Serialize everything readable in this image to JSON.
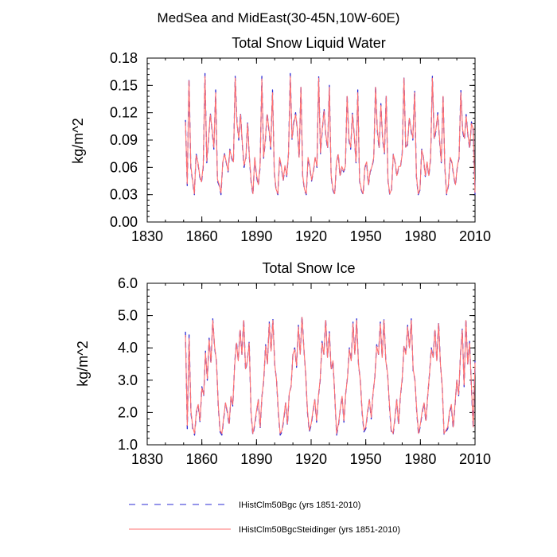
{
  "suptitle": "MedSea and MidEast(30-45N,10W-60E)",
  "legend": {
    "entries": [
      {
        "label": "IHistClm50Bgc (yrs 1851-2010)",
        "color": "#2b2bd6",
        "dash": "dashed"
      },
      {
        "label": "IHistClm50BgcSteidinger (yrs 1851-2010)",
        "color": "#ff7070",
        "dash": "solid"
      }
    ]
  },
  "chart_data": [
    {
      "type": "line",
      "title": "Total Snow Liquid Water",
      "xlabel": "",
      "ylabel": "kg/m^2",
      "xlim": [
        1830,
        2010
      ],
      "ylim": [
        0.0,
        0.18
      ],
      "xticks": [
        "1830",
        "1860",
        "1890",
        "1920",
        "1950",
        "1980",
        "2010"
      ],
      "yticks": [
        "0.00",
        "0.03",
        "0.06",
        "0.09",
        "0.12",
        "0.15",
        "0.18"
      ],
      "x_start": 1851,
      "x_end": 2010,
      "series": [
        {
          "name": "IHistClm50Bgc (yrs 1851-2010)",
          "color": "#2b2bd6",
          "values": [
            0.112,
            0.04,
            0.158,
            0.06,
            0.045,
            0.03,
            0.075,
            0.065,
            0.05,
            0.043,
            0.06,
            0.163,
            0.065,
            0.09,
            0.12,
            0.1,
            0.08,
            0.145,
            0.045,
            0.04,
            0.03,
            0.065,
            0.075,
            0.065,
            0.055,
            0.08,
            0.07,
            0.065,
            0.16,
            0.11,
            0.09,
            0.12,
            0.085,
            0.06,
            0.07,
            0.11,
            0.07,
            0.043,
            0.03,
            0.07,
            0.05,
            0.04,
            0.06,
            0.16,
            0.07,
            0.09,
            0.12,
            0.1,
            0.08,
            0.145,
            0.055,
            0.035,
            0.03,
            0.07,
            0.06,
            0.045,
            0.06,
            0.05,
            0.075,
            0.163,
            0.09,
            0.11,
            0.12,
            0.1,
            0.07,
            0.15,
            0.05,
            0.035,
            0.03,
            0.07,
            0.06,
            0.045,
            0.055,
            0.07,
            0.06,
            0.16,
            0.075,
            0.1,
            0.125,
            0.095,
            0.08,
            0.15,
            0.05,
            0.035,
            0.03,
            0.065,
            0.075,
            0.05,
            0.06,
            0.055,
            0.06,
            0.14,
            0.09,
            0.08,
            0.12,
            0.095,
            0.065,
            0.145,
            0.045,
            0.035,
            0.03,
            0.06,
            0.065,
            0.04,
            0.055,
            0.06,
            0.07,
            0.15,
            0.1,
            0.08,
            0.13,
            0.09,
            0.075,
            0.14,
            0.045,
            0.03,
            0.035,
            0.075,
            0.065,
            0.05,
            0.06,
            0.06,
            0.075,
            0.16,
            0.08,
            0.085,
            0.115,
            0.1,
            0.09,
            0.145,
            0.05,
            0.03,
            0.035,
            0.08,
            0.07,
            0.05,
            0.065,
            0.05,
            0.07,
            0.16,
            0.09,
            0.1,
            0.12,
            0.09,
            0.065,
            0.14,
            0.06,
            0.03,
            0.04,
            0.07,
            0.065,
            0.05,
            0.04,
            0.06,
            0.07,
            0.145,
            0.1,
            0.09,
            0.118,
            0.095,
            0.08,
            0.11,
            0.1,
            0.03
          ]
        },
        {
          "name": "IHistClm50BgcSteidinger (yrs 1851-2010)",
          "color": "#ff7070",
          "values": [
            0.11,
            0.042,
            0.155,
            0.062,
            0.046,
            0.031,
            0.073,
            0.066,
            0.051,
            0.044,
            0.062,
            0.16,
            0.067,
            0.092,
            0.118,
            0.102,
            0.082,
            0.142,
            0.047,
            0.041,
            0.032,
            0.066,
            0.074,
            0.066,
            0.056,
            0.079,
            0.071,
            0.066,
            0.158,
            0.108,
            0.092,
            0.118,
            0.087,
            0.062,
            0.071,
            0.108,
            0.071,
            0.045,
            0.031,
            0.071,
            0.052,
            0.041,
            0.062,
            0.157,
            0.071,
            0.092,
            0.118,
            0.102,
            0.082,
            0.142,
            0.056,
            0.036,
            0.031,
            0.071,
            0.061,
            0.046,
            0.062,
            0.051,
            0.074,
            0.16,
            0.092,
            0.108,
            0.118,
            0.102,
            0.071,
            0.148,
            0.051,
            0.036,
            0.031,
            0.071,
            0.061,
            0.046,
            0.056,
            0.071,
            0.061,
            0.158,
            0.076,
            0.102,
            0.122,
            0.096,
            0.082,
            0.148,
            0.051,
            0.036,
            0.031,
            0.066,
            0.074,
            0.051,
            0.061,
            0.056,
            0.061,
            0.138,
            0.092,
            0.082,
            0.118,
            0.096,
            0.066,
            0.142,
            0.046,
            0.036,
            0.031,
            0.061,
            0.066,
            0.041,
            0.056,
            0.061,
            0.071,
            0.148,
            0.102,
            0.082,
            0.128,
            0.092,
            0.076,
            0.138,
            0.046,
            0.031,
            0.036,
            0.074,
            0.066,
            0.051,
            0.061,
            0.061,
            0.074,
            0.158,
            0.082,
            0.086,
            0.114,
            0.102,
            0.092,
            0.142,
            0.051,
            0.031,
            0.036,
            0.079,
            0.071,
            0.051,
            0.066,
            0.051,
            0.071,
            0.158,
            0.092,
            0.102,
            0.118,
            0.092,
            0.066,
            0.138,
            0.061,
            0.031,
            0.041,
            0.071,
            0.066,
            0.051,
            0.041,
            0.061,
            0.071,
            0.142,
            0.102,
            0.092,
            0.116,
            0.096,
            0.082,
            0.108,
            0.102,
            0.032
          ]
        }
      ]
    },
    {
      "type": "line",
      "title": "Total Snow Ice",
      "xlabel": "",
      "ylabel": "kg/m^2",
      "xlim": [
        1830,
        2010
      ],
      "ylim": [
        1.0,
        6.0
      ],
      "xticks": [
        "1830",
        "1860",
        "1890",
        "1920",
        "1950",
        "1980",
        "2010"
      ],
      "yticks": [
        "1.0",
        "2.0",
        "3.0",
        "4.0",
        "5.0",
        "6.0"
      ],
      "x_start": 1851,
      "x_end": 2010,
      "series": [
        {
          "name": "IHistClm50Bgc (yrs 1851-2010)",
          "color": "#2b2bd6",
          "values": [
            4.5,
            1.5,
            4.4,
            2.0,
            1.5,
            1.3,
            2.0,
            2.2,
            1.7,
            2.8,
            2.5,
            3.9,
            3.0,
            4.3,
            3.5,
            4.9,
            4.0,
            3.6,
            2.2,
            1.4,
            1.3,
            1.8,
            2.3,
            2.0,
            1.6,
            2.5,
            2.2,
            3.5,
            4.2,
            3.6,
            4.6,
            3.8,
            4.9,
            3.3,
            3.6,
            4.2,
            2.0,
            1.3,
            1.6,
            2.0,
            2.4,
            1.5,
            2.5,
            3.0,
            4.1,
            3.5,
            4.8,
            3.9,
            4.9,
            3.5,
            3.0,
            2.0,
            1.3,
            1.4,
            1.8,
            2.3,
            1.6,
            2.6,
            2.8,
            3.8,
            4.0,
            3.4,
            4.7,
            3.8,
            5.0,
            4.0,
            3.2,
            2.0,
            1.4,
            1.6,
            2.0,
            2.4,
            1.7,
            2.5,
            3.0,
            4.2,
            3.8,
            4.9,
            3.7,
            4.5,
            3.3,
            3.6,
            2.5,
            1.3,
            1.6,
            2.1,
            2.5,
            1.7,
            2.6,
            3.1,
            4.0,
            3.6,
            4.8,
            3.8,
            4.9,
            3.5,
            3.0,
            2.0,
            1.4,
            1.5,
            2.0,
            2.4,
            1.8,
            2.6,
            3.1,
            4.1,
            3.8,
            4.8,
            3.7,
            4.9,
            3.6,
            3.2,
            2.2,
            1.4,
            1.3,
            1.8,
            2.4,
            1.6,
            2.5,
            3.0,
            4.1,
            3.8,
            4.7,
            4.0,
            4.9,
            3.3,
            3.0,
            2.0,
            1.3,
            1.6,
            2.0,
            2.3,
            1.7,
            2.5,
            3.2,
            4.0,
            3.7,
            4.6,
            3.6,
            4.8,
            3.5,
            2.8,
            1.3,
            1.4,
            1.5,
            2.0,
            2.2,
            1.5,
            2.2,
            3.0,
            2.5,
            3.8,
            4.6,
            2.8,
            4.9,
            3.5,
            4.2,
            2.8,
            1.5,
            3.6
          ]
        },
        {
          "name": "IHistClm50BgcSteidinger (yrs 1851-2010)",
          "color": "#ff7070",
          "values": [
            4.4,
            1.6,
            4.3,
            2.05,
            1.55,
            1.35,
            2.05,
            2.25,
            1.75,
            2.75,
            2.55,
            3.85,
            3.05,
            4.25,
            3.55,
            4.85,
            4.05,
            3.6,
            2.25,
            1.45,
            1.35,
            1.85,
            2.3,
            2.05,
            1.65,
            2.5,
            2.25,
            3.45,
            4.15,
            3.6,
            4.55,
            3.8,
            4.85,
            3.35,
            3.6,
            4.15,
            2.05,
            1.35,
            1.65,
            2.05,
            2.4,
            1.55,
            2.5,
            3.05,
            4.05,
            3.5,
            4.75,
            3.9,
            4.85,
            3.5,
            3.0,
            2.05,
            1.35,
            1.45,
            1.85,
            2.3,
            1.65,
            2.6,
            2.8,
            3.8,
            3.95,
            3.45,
            4.65,
            3.8,
            4.95,
            4.0,
            3.2,
            2.05,
            1.45,
            1.65,
            2.05,
            2.4,
            1.75,
            2.5,
            3.05,
            4.15,
            3.8,
            4.85,
            3.7,
            4.45,
            3.35,
            3.6,
            2.5,
            1.35,
            1.65,
            2.1,
            2.5,
            1.75,
            2.6,
            3.1,
            3.95,
            3.6,
            4.75,
            3.8,
            4.85,
            3.5,
            3.0,
            2.05,
            1.45,
            1.55,
            2.05,
            2.4,
            1.85,
            2.6,
            3.1,
            4.05,
            3.8,
            4.75,
            3.7,
            4.85,
            3.6,
            3.2,
            2.25,
            1.45,
            1.35,
            1.85,
            2.4,
            1.65,
            2.5,
            3.05,
            4.05,
            3.8,
            4.65,
            4.0,
            4.85,
            3.35,
            3.0,
            2.05,
            1.35,
            1.65,
            2.05,
            2.3,
            1.75,
            2.5,
            3.2,
            3.95,
            3.7,
            4.55,
            3.6,
            4.75,
            3.5,
            2.8,
            1.35,
            1.45,
            1.55,
            2.05,
            2.25,
            1.55,
            2.25,
            3.0,
            2.55,
            3.8,
            4.55,
            2.85,
            4.85,
            3.5,
            4.15,
            2.85,
            1.55,
            3.55
          ]
        }
      ]
    }
  ]
}
